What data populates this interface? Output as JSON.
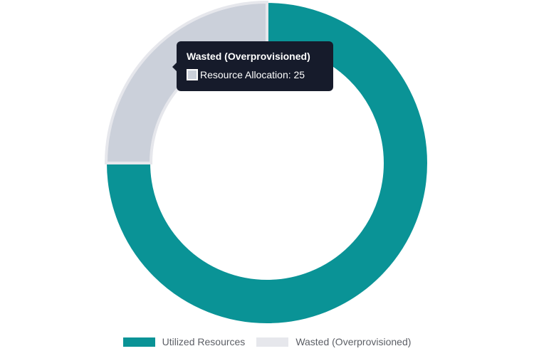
{
  "chart_data": {
    "type": "pie",
    "title": "",
    "series": [
      {
        "name": "Resource Allocation",
        "values": [
          75,
          25
        ]
      }
    ],
    "categories": [
      "Utilized Resources",
      "Wasted (Overprovisioned)"
    ],
    "colors": [
      "#0a9396",
      "#cbd0da"
    ],
    "legend_placement": "bottom"
  },
  "tooltip": {
    "title": "Wasted (Overprovisioned)",
    "label": "Resource Allocation: 25",
    "swatch_color": "#cbd0da"
  },
  "legend": {
    "items": [
      {
        "label": "Utilized Resources",
        "color": "#0a9396"
      },
      {
        "label": "Wasted (Overprovisioned)",
        "color": "#e6e7ec"
      }
    ]
  }
}
